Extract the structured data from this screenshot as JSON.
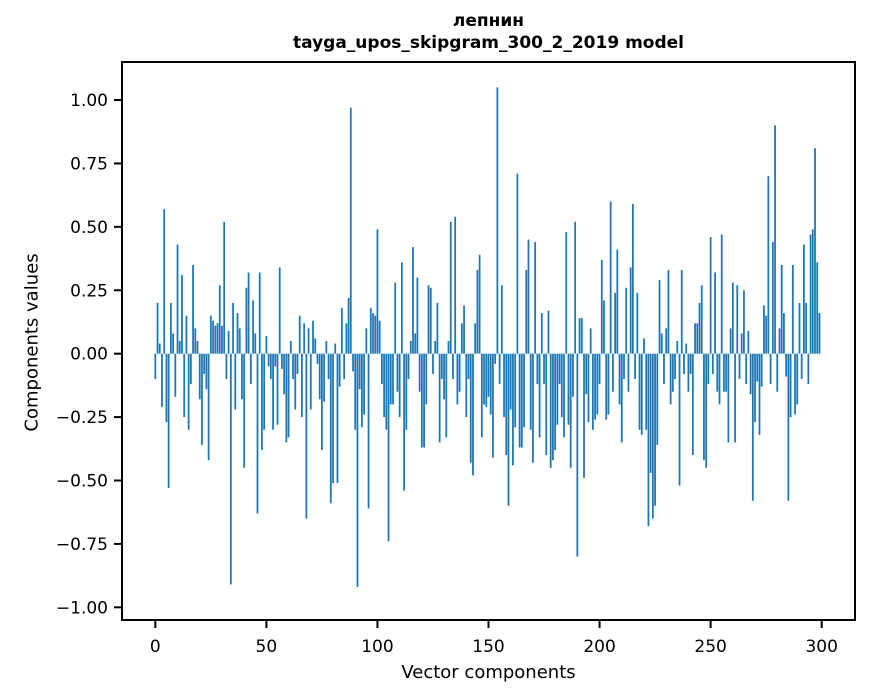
{
  "figure": {
    "background": "#ffffff"
  },
  "chart_data": {
    "type": "bar",
    "title": "лепнин",
    "subtitle": "tayga_upos_skipgram_300_2_2019 model",
    "xlabel": "Vector components",
    "ylabel": "Components values",
    "bar_color": "#1f77b4",
    "axis_color": "#000000",
    "grid": false,
    "legend": "none",
    "xlim": [
      -15,
      315
    ],
    "ylim": [
      -1.05,
      1.15
    ],
    "xticks": [
      0,
      50,
      100,
      150,
      200,
      250,
      300
    ],
    "xtick_labels": [
      "0",
      "50",
      "100",
      "150",
      "200",
      "250",
      "300"
    ],
    "yticks": [
      1.0,
      0.75,
      0.5,
      0.25,
      0.0,
      -0.25,
      -0.5,
      -0.75,
      -1.0
    ],
    "ytick_labels": [
      "1.00",
      "0.75",
      "0.50",
      "0.25",
      "0.00",
      "−0.25",
      "−0.50",
      "−0.75",
      "−1.00"
    ],
    "x_is_index": true,
    "n_components": 300,
    "values": [
      -0.1,
      0.2,
      0.04,
      -0.21,
      0.57,
      -0.27,
      -0.53,
      0.2,
      0.08,
      -0.17,
      0.43,
      0.05,
      0.31,
      -0.25,
      0.15,
      -0.3,
      -0.12,
      0.35,
      0.1,
      0.05,
      -0.18,
      -0.36,
      -0.08,
      -0.14,
      -0.42,
      0.15,
      0.13,
      0.11,
      0.12,
      0.27,
      0.11,
      0.52,
      -0.1,
      0.09,
      -0.91,
      0.2,
      -0.22,
      0.16,
      0.1,
      -0.18,
      -0.45,
      0.26,
      0.32,
      -0.12,
      0.21,
      0.08,
      -0.63,
      0.32,
      -0.38,
      -0.3,
      0.07,
      -0.05,
      -0.1,
      -0.3,
      -0.05,
      -0.28,
      0.34,
      -0.06,
      -0.16,
      -0.35,
      -0.33,
      0.05,
      -0.1,
      -0.22,
      -0.08,
      0.15,
      -0.25,
      0.12,
      -0.65,
      0.1,
      -0.22,
      0.13,
      0.06,
      -0.04,
      -0.18,
      -0.38,
      -0.19,
      0.05,
      -0.1,
      -0.59,
      -0.51,
      0.04,
      -0.51,
      -0.13,
      0.18,
      -0.1,
      0.12,
      0.22,
      0.97,
      -0.07,
      -0.3,
      -0.92,
      -0.14,
      -0.29,
      -0.24,
      0.1,
      -0.61,
      0.18,
      0.16,
      0.15,
      0.49,
      0.13,
      -0.12,
      -0.25,
      -0.3,
      -0.74,
      -0.2,
      -0.2,
      0.28,
      -0.15,
      -0.25,
      0.36,
      -0.54,
      -0.3,
      -0.1,
      0.05,
      0.42,
      0.08,
      0.3,
      -0.15,
      -0.37,
      -0.37,
      -0.2,
      0.27,
      0.26,
      -0.08,
      0.05,
      0.2,
      -0.35,
      -0.1,
      -0.18,
      -0.33,
      0.05,
      0.52,
      -0.1,
      0.54,
      -0.2,
      -0.15,
      0.12,
      0.19,
      -0.25,
      -0.1,
      -0.43,
      -0.48,
      0.12,
      0.33,
      0.39,
      -0.33,
      -0.2,
      -0.21,
      -0.17,
      -0.24,
      -0.41,
      -0.04,
      1.05,
      -0.12,
      0.27,
      -0.25,
      -0.4,
      -0.6,
      -0.22,
      -0.44,
      -0.29,
      0.71,
      -0.37,
      -0.37,
      -0.29,
      0.33,
      0.45,
      -0.3,
      -0.43,
      0.44,
      -0.12,
      -0.33,
      0.16,
      -0.12,
      -0.4,
      0.17,
      -0.45,
      -0.42,
      -0.38,
      -0.28,
      -0.12,
      -0.25,
      -0.33,
      0.48,
      -0.28,
      -0.45,
      -0.17,
      0.52,
      -0.8,
      0.14,
      0.14,
      -0.49,
      -0.16,
      -0.27,
      0.1,
      -0.3,
      -0.26,
      -0.24,
      -0.12,
      0.37,
      0.21,
      -0.26,
      -0.24,
      0.6,
      -0.15,
      0.24,
      0.41,
      -0.2,
      -0.35,
      -0.1,
      0.26,
      -0.15,
      0.34,
      0.59,
      -0.1,
      0.24,
      -0.3,
      -0.32,
      0.06,
      -0.3,
      -0.68,
      -0.47,
      -0.65,
      -0.6,
      -0.36,
      0.29,
      0.08,
      -0.12,
      0.1,
      0.33,
      -0.2,
      -0.15,
      -0.1,
      0.05,
      -0.52,
      0.33,
      -0.08,
      0.04,
      -0.15,
      -0.08,
      -0.4,
      0.12,
      0.12,
      0.2,
      0.27,
      -0.42,
      -0.45,
      -0.12,
      0.46,
      -0.08,
      0.32,
      -0.15,
      -0.2,
      0.47,
      -0.15,
      -0.15,
      -0.35,
      0.1,
      0.28,
      -0.35,
      0.27,
      -0.1,
      0.08,
      0.25,
      -0.12,
      0.09,
      -0.16,
      -0.58,
      -0.27,
      -0.11,
      -0.32,
      -0.13,
      0.19,
      0.15,
      0.7,
      -0.12,
      0.44,
      0.9,
      -0.15,
      0.1,
      0.35,
      0.16,
      -0.09,
      -0.58,
      -0.25,
      0.35,
      -0.24,
      -0.2,
      0.2,
      -0.1,
      0.43,
      0.2,
      -0.12,
      0.47,
      0.49,
      0.81,
      0.36,
      0.16
    ]
  }
}
